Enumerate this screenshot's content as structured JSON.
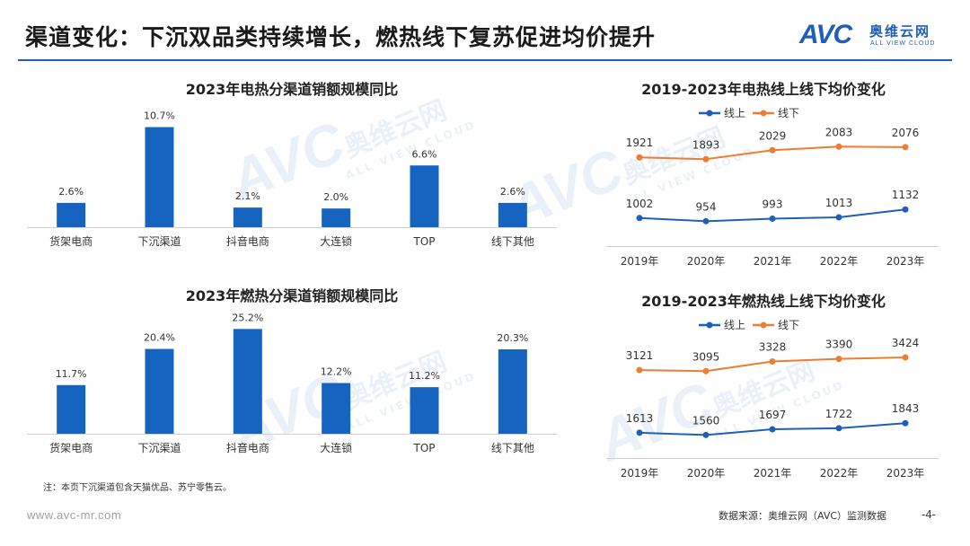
{
  "header": {
    "title": "渠道变化：下沉双品类持续增长，燃热线下复苏促进均价提升",
    "logo_avc": "AVC",
    "logo_cn": "奥维云网",
    "logo_en": "ALL VIEW CLOUD"
  },
  "watermark": {
    "avc": "AVC",
    "cn": "奥维云网",
    "en": "ALL VIEW CLOUD"
  },
  "colors": {
    "bar": "#1565c0",
    "online": "#1f5fb8",
    "offline": "#ed7d31",
    "rule": "#1f5fb8"
  },
  "chart_data": [
    {
      "type": "bar",
      "title": "2023年电热分渠道销额规模同比",
      "categories": [
        "货架电商",
        "下沉渠道",
        "抖音电商",
        "大连锁",
        "TOP",
        "线下其他"
      ],
      "values": [
        2.6,
        10.7,
        2.1,
        2.0,
        6.6,
        2.6
      ],
      "value_labels": [
        "2.6%",
        "10.7%",
        "2.1%",
        "2.0%",
        "6.6%",
        "2.6%"
      ],
      "unit": "%",
      "ylim": [
        0,
        12
      ]
    },
    {
      "type": "bar",
      "title": "2023年燃热分渠道销额规模同比",
      "categories": [
        "货架电商",
        "下沉渠道",
        "抖音电商",
        "大连锁",
        "TOP",
        "线下其他"
      ],
      "values": [
        11.7,
        20.4,
        25.2,
        12.2,
        11.2,
        20.3
      ],
      "value_labels": [
        "11.7%",
        "20.4%",
        "25.2%",
        "12.2%",
        "11.2%",
        "20.3%"
      ],
      "unit": "%",
      "ylim": [
        0,
        27
      ]
    },
    {
      "type": "line",
      "title": "2019-2023年电热线上线下均价变化",
      "x": [
        "2019年",
        "2020年",
        "2021年",
        "2022年",
        "2023年"
      ],
      "series": [
        {
          "name": "线上",
          "values": [
            1002,
            954,
            993,
            1013,
            1132
          ]
        },
        {
          "name": "线下",
          "values": [
            1921,
            1893,
            2029,
            2083,
            2076
          ]
        }
      ],
      "ylim": [
        700,
        2400
      ]
    },
    {
      "type": "line",
      "title": "2019-2023年燃热线上线下均价变化",
      "x": [
        "2019年",
        "2020年",
        "2021年",
        "2022年",
        "2023年"
      ],
      "series": [
        {
          "name": "线上",
          "values": [
            1613,
            1560,
            1697,
            1722,
            1843
          ]
        },
        {
          "name": "线下",
          "values": [
            3121,
            3095,
            3328,
            3390,
            3424
          ]
        }
      ],
      "ylim": [
        1200,
        3900
      ]
    }
  ],
  "footer": {
    "note": "注：本页下沉渠道包含天猫优品、苏宁零售云。",
    "url": "www.avc-mr.com",
    "source": "数据来源：奥维云网（AVC）监测数据",
    "page_number": "-4-"
  }
}
